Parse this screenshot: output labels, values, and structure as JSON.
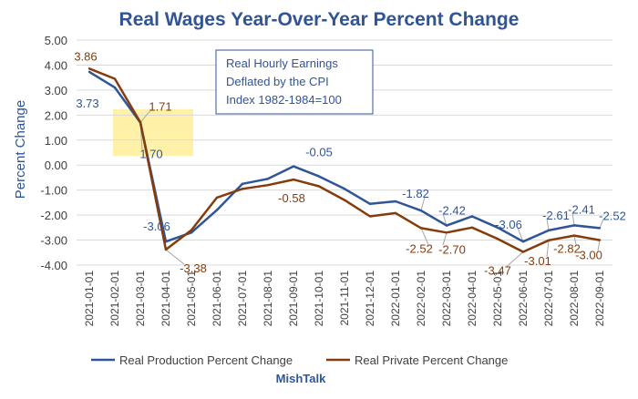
{
  "chart_data": {
    "type": "line",
    "title": "Real Wages Year-Over-Year Percent Change",
    "ylabel": "Percent Change",
    "xlabel": "",
    "ylim": [
      -4,
      5
    ],
    "yticks": [
      "5.00",
      "4.00",
      "3.00",
      "2.00",
      "1.00",
      "0.00",
      "-1.00",
      "-2.00",
      "-3.00",
      "-4.00"
    ],
    "grid": true,
    "legend": "bottom",
    "categories": [
      "2021-01-01",
      "2021-02-01",
      "2021-03-01",
      "2021-04-01",
      "2021-05-01",
      "2021-06-01",
      "2021-07-01",
      "2021-08-01",
      "2021-09-01",
      "2021-10-01",
      "2021-11-01",
      "2021-12-01",
      "2022-01-01",
      "2022-02-01",
      "2022-03-01",
      "2022-04-01",
      "2022-05-01",
      "2022-06-01",
      "2022-07-01",
      "2022-08-01",
      "2022-09-01"
    ],
    "series": [
      {
        "name": "Real Production Percent Change",
        "color": "#2f5597",
        "values": [
          3.73,
          3.1,
          1.7,
          -3.06,
          -2.7,
          -1.8,
          -0.75,
          -0.55,
          -0.05,
          -0.45,
          -0.95,
          -1.55,
          -1.45,
          -1.82,
          -2.42,
          -2.05,
          -2.5,
          -3.06,
          -2.61,
          -2.41,
          -2.52
        ]
      },
      {
        "name": "Real Private Percent Change",
        "color": "#843c0c",
        "values": [
          3.86,
          3.45,
          1.71,
          -3.38,
          -2.6,
          -1.3,
          -0.95,
          -0.8,
          -0.58,
          -0.85,
          -1.4,
          -2.05,
          -1.92,
          -2.52,
          -2.7,
          -2.5,
          -2.95,
          -3.47,
          -3.01,
          -2.82,
          -3.0
        ]
      }
    ],
    "data_labels": [
      {
        "series": 0,
        "index": 0,
        "text": "3.73"
      },
      {
        "series": 1,
        "index": 0,
        "text": "3.86"
      },
      {
        "series": 1,
        "index": 2,
        "text": "1.71"
      },
      {
        "series": 0,
        "index": 2,
        "text": "1.70"
      },
      {
        "series": 0,
        "index": 3,
        "text": "-3.06"
      },
      {
        "series": 1,
        "index": 3,
        "text": "-3.38"
      },
      {
        "series": 0,
        "index": 8,
        "text": "-0.05"
      },
      {
        "series": 1,
        "index": 8,
        "text": "-0.58"
      },
      {
        "series": 0,
        "index": 13,
        "text": "-1.82"
      },
      {
        "series": 1,
        "index": 13,
        "text": "-2.52"
      },
      {
        "series": 0,
        "index": 14,
        "text": "-2.42"
      },
      {
        "series": 1,
        "index": 14,
        "text": "-2.70"
      },
      {
        "series": 0,
        "index": 17,
        "text": "-3.06"
      },
      {
        "series": 1,
        "index": 17,
        "text": "-3.47"
      },
      {
        "series": 0,
        "index": 18,
        "text": "-2.61"
      },
      {
        "series": 1,
        "index": 18,
        "text": "-3.01"
      },
      {
        "series": 0,
        "index": 19,
        "text": "-2.41"
      },
      {
        "series": 1,
        "index": 19,
        "text": "-2.82"
      },
      {
        "series": 0,
        "index": 20,
        "text": "-2.52"
      },
      {
        "series": 1,
        "index": 20,
        "text": "-3.00"
      }
    ],
    "annotation_lines": [
      "Real Hourly Earnings",
      "Deflated by the CPI",
      "Index 1982-1984=100"
    ],
    "highlight_color": "#fff2a8",
    "source": "MishTalk"
  }
}
